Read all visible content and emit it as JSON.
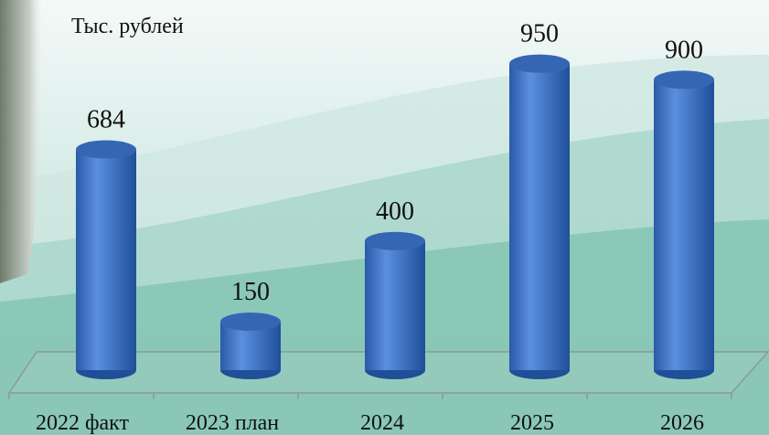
{
  "chart_data": {
    "type": "bar3d",
    "y_label": "Тыс. рублей",
    "categories": [
      "2022 факт",
      "2023 план",
      "2024",
      "2025",
      "2026"
    ],
    "values": [
      684,
      150,
      400,
      950,
      900
    ],
    "color": "#3a70c0",
    "ylim": [
      0,
      1000
    ]
  }
}
